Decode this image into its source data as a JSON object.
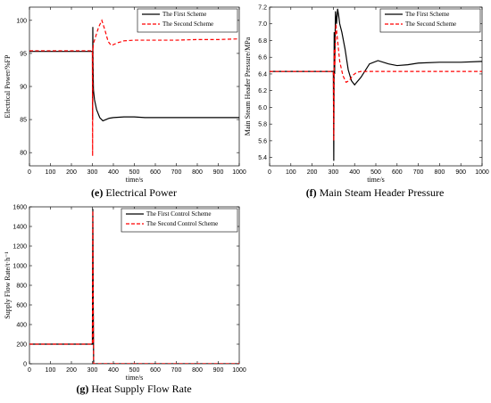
{
  "chart_data": [
    {
      "type": "line",
      "caption_letter": "(e)",
      "caption_text": "Electrical Power",
      "xlabel": "time/s",
      "ylabel": "Electrical Power/%FP",
      "xlim": [
        0,
        1000
      ],
      "ylim": [
        78,
        102
      ],
      "xticks": [
        0,
        100,
        200,
        300,
        400,
        500,
        600,
        700,
        800,
        900,
        1000
      ],
      "yticks": [
        80,
        85,
        90,
        95,
        100
      ],
      "legend_position": "top-right",
      "series": [
        {
          "name": "The First Scheme",
          "color": "#000000",
          "dash": "solid",
          "x": [
            0,
            100,
            200,
            300,
            301,
            302,
            303,
            305,
            310,
            320,
            335,
            350,
            365,
            380,
            400,
            450,
            500,
            550,
            600,
            700,
            800,
            900,
            1000
          ],
          "y": [
            95.3,
            95.3,
            95.3,
            95.3,
            85.0,
            99.0,
            93.5,
            89.5,
            88.0,
            86.5,
            85.3,
            84.8,
            85.0,
            85.2,
            85.3,
            85.4,
            85.4,
            85.3,
            85.3,
            85.3,
            85.3,
            85.3,
            85.3
          ]
        },
        {
          "name": "The Second Scheme",
          "color": "#ff0000",
          "dash": "dashed",
          "x": [
            0,
            100,
            200,
            300,
            301,
            302,
            303,
            305,
            315,
            330,
            345,
            360,
            375,
            390,
            420,
            450,
            500,
            600,
            700,
            800,
            900,
            1000
          ],
          "y": [
            95.4,
            95.4,
            95.4,
            95.4,
            79.5,
            95.8,
            95.6,
            96.5,
            97.5,
            99.0,
            100.0,
            98.5,
            96.8,
            96.2,
            96.6,
            96.9,
            97.0,
            97.0,
            97.0,
            97.1,
            97.1,
            97.2
          ]
        }
      ]
    },
    {
      "type": "line",
      "caption_letter": "(f)",
      "caption_text": "Main Steam Header Pressure",
      "xlabel": "time/s",
      "ylabel": "Main Steam Header Pressure/MPa",
      "xlim": [
        0,
        1000
      ],
      "ylim": [
        5.3,
        7.2
      ],
      "xticks": [
        0,
        100,
        200,
        300,
        400,
        500,
        600,
        700,
        800,
        900,
        1000
      ],
      "yticks": [
        5.4,
        5.6,
        5.8,
        6.0,
        6.2,
        6.4,
        6.6,
        6.8,
        7.0,
        7.2
      ],
      "legend_position": "top-right",
      "series": [
        {
          "name": "The First Scheme",
          "color": "#000000",
          "dash": "solid",
          "x": [
            0,
            100,
            200,
            300,
            302,
            304,
            306,
            310,
            315,
            320,
            325,
            330,
            340,
            355,
            370,
            385,
            400,
            430,
            470,
            510,
            560,
            600,
            650,
            700,
            800,
            900,
            1000
          ],
          "y": [
            6.43,
            6.43,
            6.43,
            6.43,
            5.36,
            6.9,
            6.4,
            7.15,
            7.0,
            7.18,
            7.1,
            7.0,
            6.9,
            6.7,
            6.45,
            6.32,
            6.27,
            6.36,
            6.52,
            6.56,
            6.52,
            6.5,
            6.51,
            6.53,
            6.54,
            6.54,
            6.55
          ]
        },
        {
          "name": "The Second Scheme",
          "color": "#ff0000",
          "dash": "dashed",
          "x": [
            0,
            100,
            200,
            300,
            302,
            304,
            307,
            312,
            320,
            330,
            345,
            360,
            375,
            390,
            410,
            430,
            460,
            500,
            600,
            700,
            800,
            900,
            1000
          ],
          "y": [
            6.43,
            6.43,
            6.43,
            6.43,
            5.6,
            6.7,
            6.5,
            7.0,
            6.8,
            6.55,
            6.38,
            6.3,
            6.32,
            6.38,
            6.42,
            6.43,
            6.43,
            6.43,
            6.43,
            6.43,
            6.43,
            6.43,
            6.43
          ]
        }
      ]
    },
    {
      "type": "line",
      "caption_letter": "(g)",
      "caption_text": "Heat Supply Flow Rate",
      "xlabel": "time/s",
      "ylabel": "Supply Flow Rate/t·h⁻¹",
      "xlim": [
        0,
        1000
      ],
      "ylim": [
        0,
        1600
      ],
      "xticks": [
        0,
        100,
        200,
        300,
        400,
        500,
        600,
        700,
        800,
        900,
        1000
      ],
      "yticks": [
        0,
        200,
        400,
        600,
        800,
        1000,
        1200,
        1400,
        1600
      ],
      "legend_position": "top-right",
      "series": [
        {
          "name": "The First Control Scheme",
          "color": "#000000",
          "dash": "solid",
          "x": [
            0,
            100,
            200,
            300,
            302,
            304,
            306,
            310,
            400,
            500,
            600,
            700,
            800,
            900,
            1000
          ],
          "y": [
            200,
            200,
            200,
            200,
            1580,
            600,
            0,
            0,
            0,
            0,
            0,
            0,
            0,
            0,
            0
          ]
        },
        {
          "name": "The Second Control Scheme",
          "color": "#ff0000",
          "dash": "dashed",
          "x": [
            0,
            100,
            200,
            300,
            302,
            304,
            306,
            310,
            400,
            500,
            600,
            700,
            800,
            900,
            1000
          ],
          "y": [
            200,
            200,
            200,
            200,
            1560,
            600,
            0,
            0,
            0,
            0,
            0,
            0,
            0,
            0,
            0
          ]
        }
      ]
    }
  ]
}
